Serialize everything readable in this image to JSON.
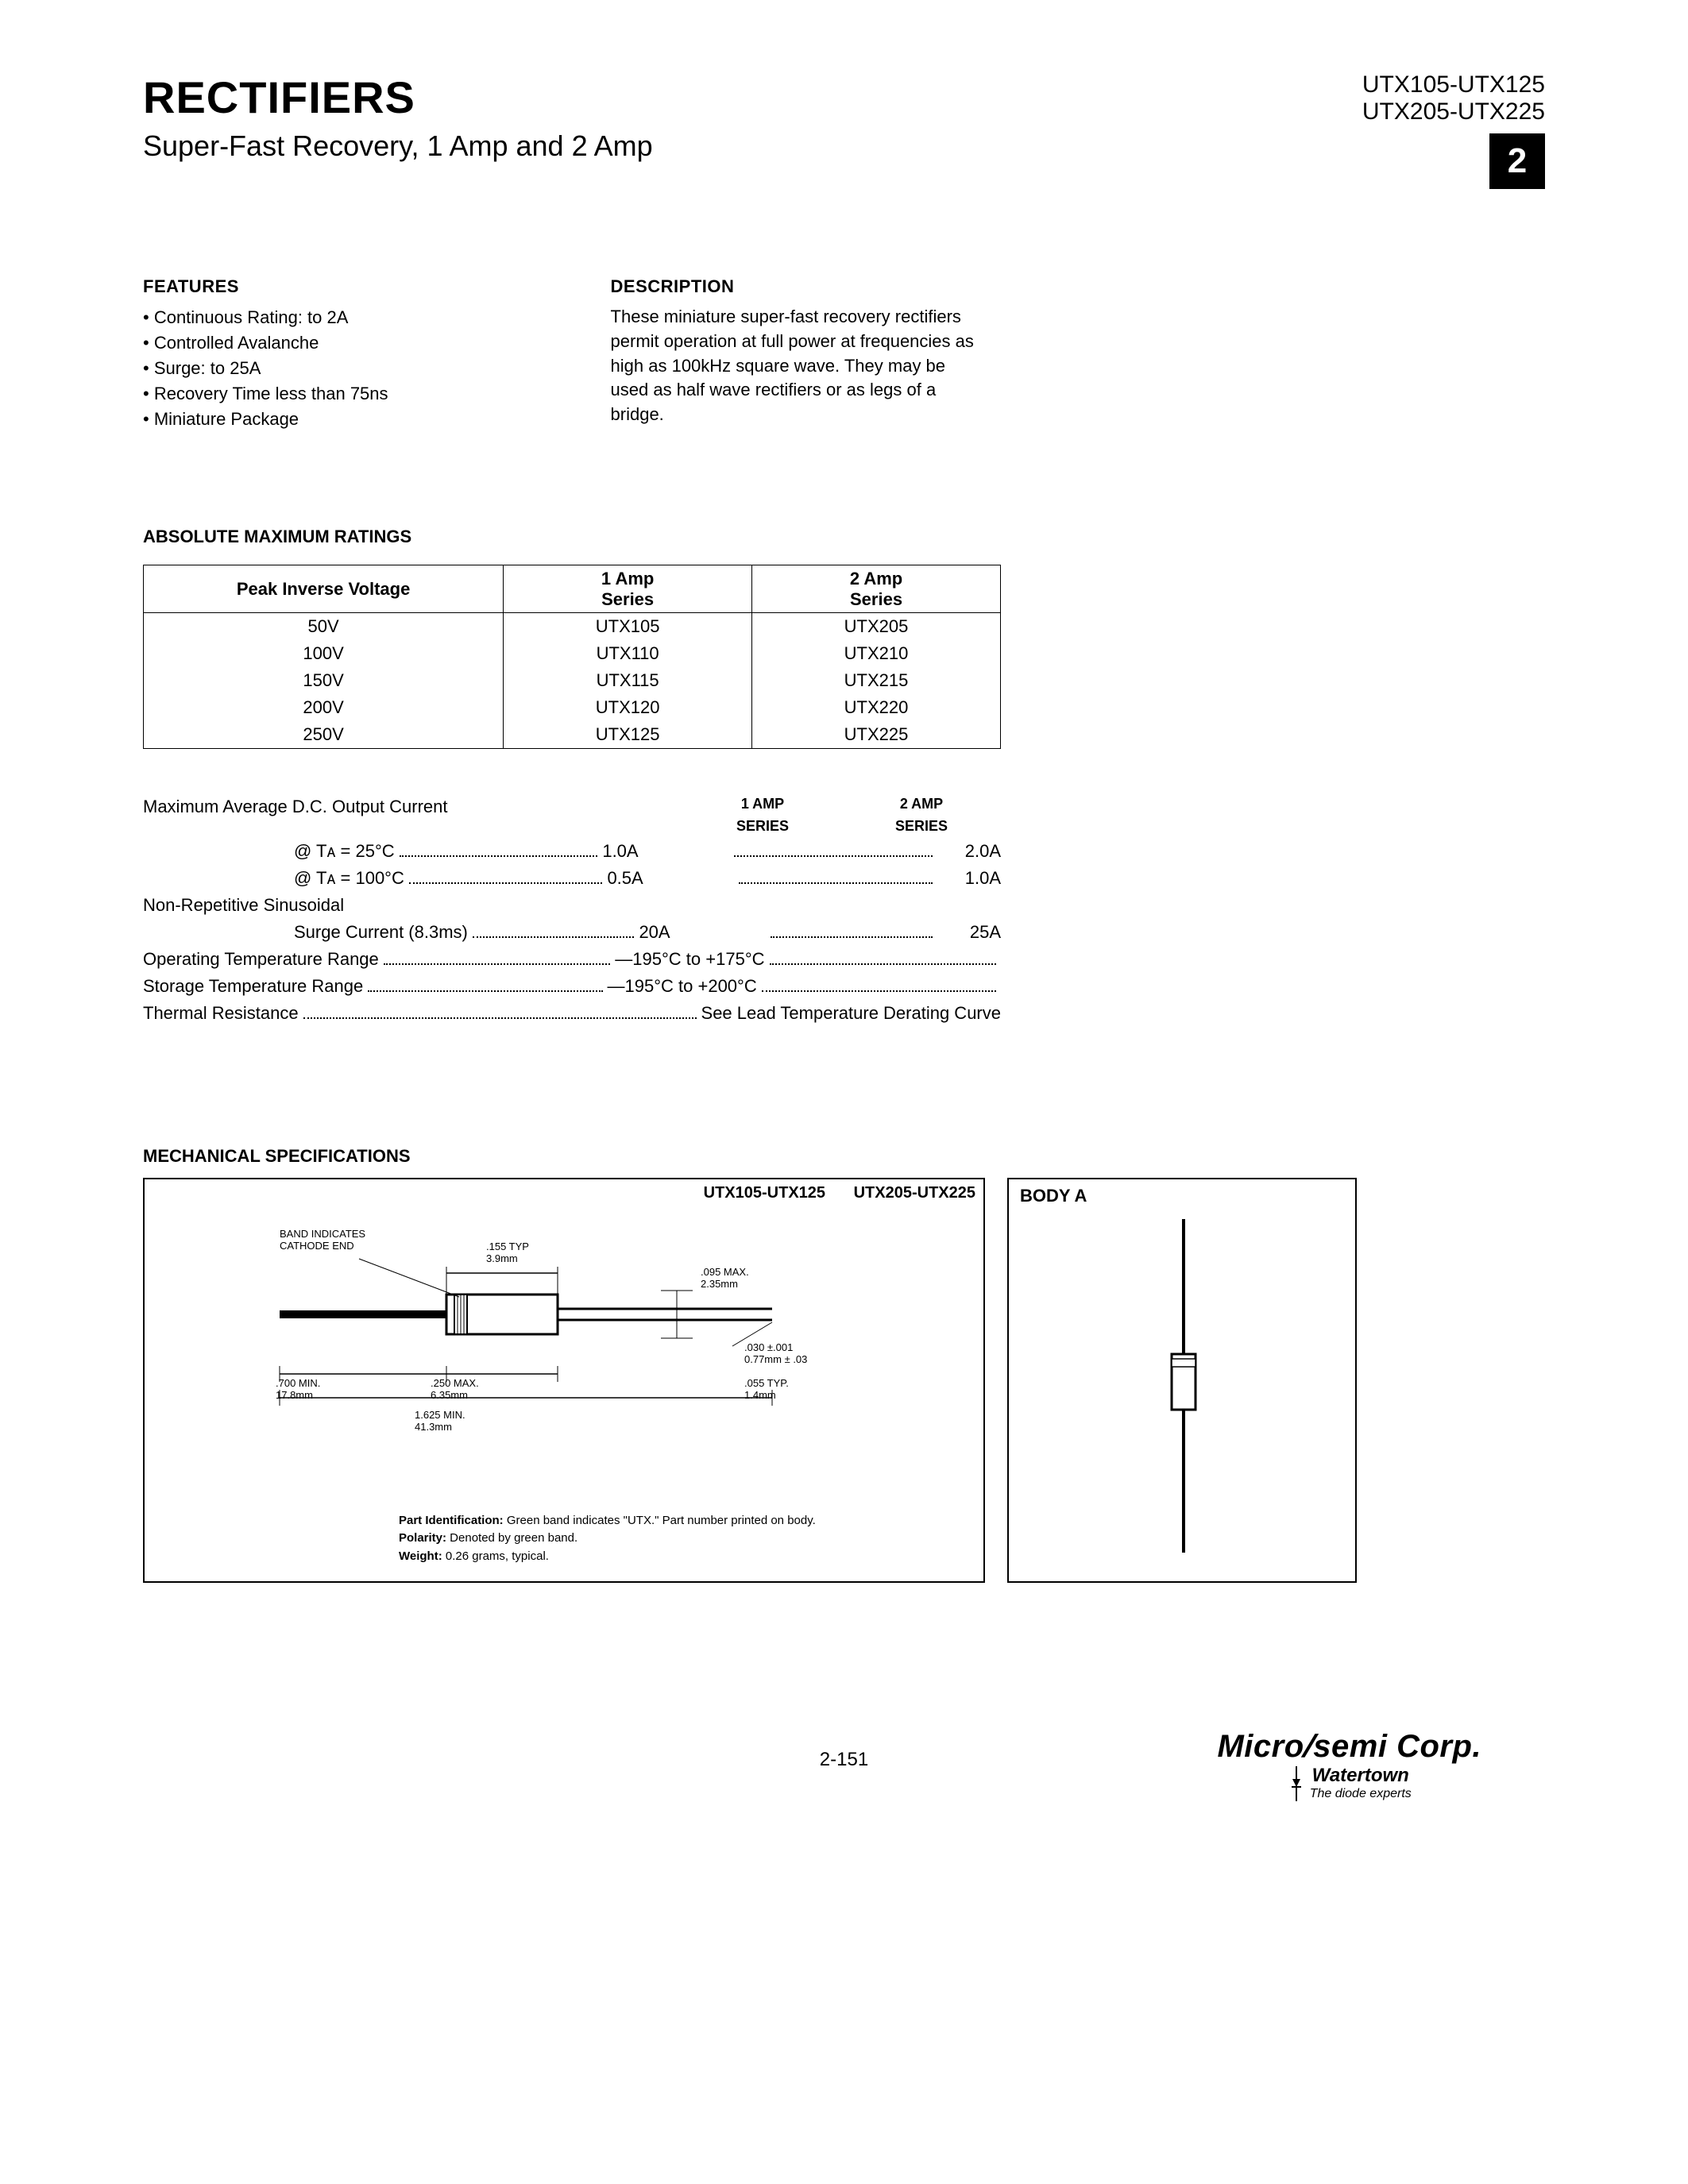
{
  "header": {
    "title": "RECTIFIERS",
    "subtitle": "Super-Fast Recovery, 1 Amp and 2 Amp",
    "part_line_1": "UTX105-UTX125",
    "part_line_2": "UTX205-UTX225",
    "badge": "2"
  },
  "features": {
    "heading": "FEATURES",
    "items": [
      "Continuous Rating: to 2A",
      "Controlled Avalanche",
      "Surge: to 25A",
      "Recovery Time less than 75ns",
      "Miniature Package"
    ]
  },
  "description": {
    "heading": "DESCRIPTION",
    "text": "These miniature super-fast recovery rectifiers permit operation at full power at frequencies as high as 100kHz square wave. They may be used as half wave rectifiers or as legs of a bridge."
  },
  "ratings": {
    "heading": "ABSOLUTE MAXIMUM RATINGS",
    "columns": [
      "Peak Inverse Voltage",
      "1 Amp\nSeries",
      "2 Amp\nSeries"
    ],
    "rows": [
      [
        "50V",
        "UTX105",
        "UTX205"
      ],
      [
        "100V",
        "UTX110",
        "UTX210"
      ],
      [
        "150V",
        "UTX115",
        "UTX215"
      ],
      [
        "200V",
        "UTX120",
        "UTX220"
      ],
      [
        "250V",
        "UTX125",
        "UTX225"
      ]
    ]
  },
  "specs": {
    "col_headers": [
      "1 AMP SERIES",
      "2 AMP SERIES"
    ],
    "max_current_label": "Maximum Average D.C. Output Current",
    "line_25c": {
      "label": "@ Tᴀ = 25°C",
      "v1": "1.0A",
      "v2": "2.0A"
    },
    "line_100c": {
      "label": "@ Tᴀ = 100°C",
      "v1": "0.5A",
      "v2": "1.0A"
    },
    "nonrep_label": "Non-Repetitive Sinusoidal",
    "surge": {
      "label": "Surge Current (8.3ms)",
      "v1": "20A",
      "v2": "25A"
    },
    "op_temp": {
      "label": "Operating Temperature Range",
      "val": "—195°C to +175°C"
    },
    "stg_temp": {
      "label": "Storage Temperature Range",
      "val": "—195°C to +200°C"
    },
    "thermal": {
      "label": "Thermal Resistance",
      "val": "See Lead Temperature Derating Curve"
    }
  },
  "mechanical": {
    "heading": "MECHANICAL SPECIFICATIONS",
    "left_title_1": "UTX105-UTX125",
    "left_title_2": "UTX205-UTX225",
    "body_a": "BODY A",
    "dims": {
      "band": "BAND INDICATES\nCATHODE END",
      "d155": ".155 TYP\n3.9mm",
      "d095max": ".095 MAX.\n2.35mm",
      "d030": ".030 ±.001\n0.77mm ± .03",
      "d055": ".055 TYP.\n1.4mm",
      "d700": ".700 MIN.\n17.8mm",
      "d250": ".250 MAX.\n6.35mm",
      "d1625": "1.625 MIN.\n41.3mm"
    },
    "notes": {
      "id": "Part Identification: Green band indicates \"UTX.\" Part number printed on body.",
      "polarity": "Polarity: Denoted by green band.",
      "weight": "Weight: 0.26 grams, typical."
    }
  },
  "footer": {
    "page": "2-151",
    "logo_main": "Microsemi Corp.",
    "logo_sub": "Watertown",
    "logo_tag": "The diode experts"
  },
  "colors": {
    "text": "#000000",
    "bg": "#ffffff",
    "badge_bg": "#000000",
    "badge_fg": "#ffffff"
  }
}
